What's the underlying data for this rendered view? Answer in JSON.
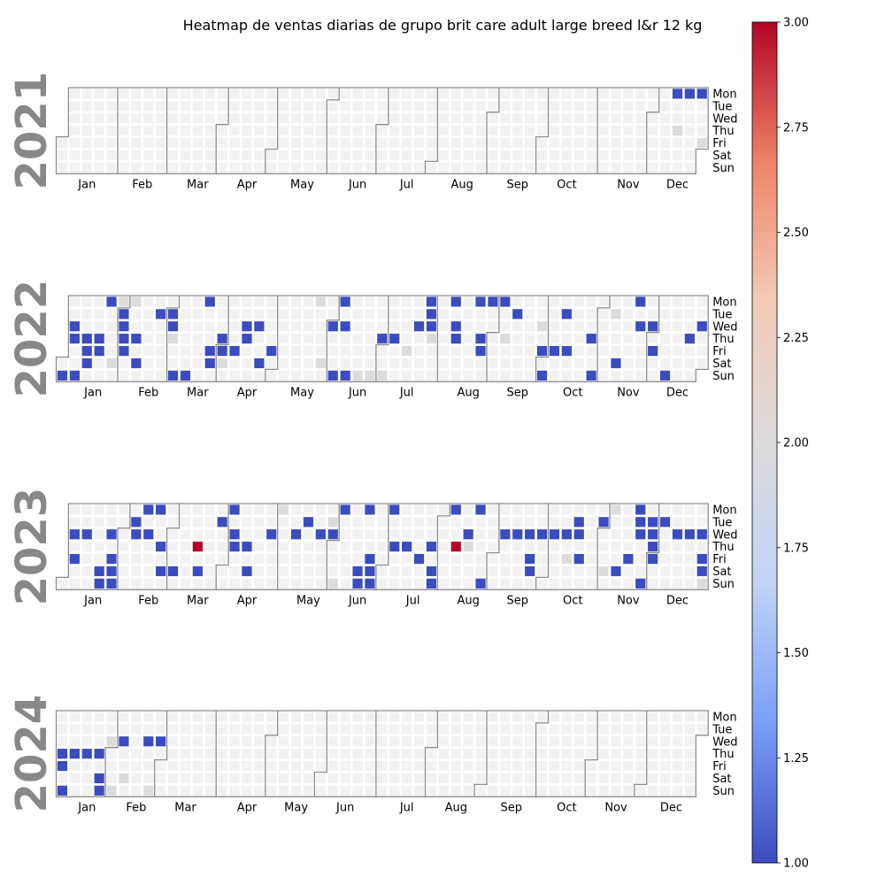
{
  "chart_data": {
    "type": "heatmap",
    "title": "Heatmap de ventas diarias de grupo brit care adult large breed l&r 12 kg",
    "weekday_labels": [
      "Mon",
      "Tue",
      "Wed",
      "Thu",
      "Fri",
      "Sat",
      "Sun"
    ],
    "month_labels": [
      "Jan",
      "Feb",
      "Mar",
      "Apr",
      "May",
      "Jun",
      "Jul",
      "Aug",
      "Sep",
      "Oct",
      "Nov",
      "Dec"
    ],
    "years": [
      2021,
      2022,
      2023,
      2024
    ],
    "colorbar": {
      "min": 1.0,
      "max": 3.0,
      "ticks": [
        "1.00",
        "1.25",
        "1.50",
        "1.75",
        "2.00",
        "2.25",
        "2.50",
        "2.75",
        "3.00"
      ],
      "colormap": "coolwarm",
      "colors": [
        "#3b4cc0",
        "#7b9ff9",
        "#c0d4f5",
        "#dddcdc",
        "#f2cbb7",
        "#ee8468",
        "#b40426"
      ]
    },
    "points": [
      {
        "date": "2021-12-13",
        "value": 1
      },
      {
        "date": "2021-12-20",
        "value": 1
      },
      {
        "date": "2021-12-27",
        "value": 1
      },
      {
        "date": "2021-12-16",
        "value": 2
      },
      {
        "date": "2021-12-31",
        "value": 2
      },
      {
        "date": "2022-01-02",
        "value": 1
      },
      {
        "date": "2022-01-05",
        "value": 1
      },
      {
        "date": "2022-01-06",
        "value": 1
      },
      {
        "date": "2022-01-09",
        "value": 1
      },
      {
        "date": "2022-01-13",
        "value": 1
      },
      {
        "date": "2022-01-14",
        "value": 1
      },
      {
        "date": "2022-01-15",
        "value": 1
      },
      {
        "date": "2022-01-20",
        "value": 1
      },
      {
        "date": "2022-01-21",
        "value": 1
      },
      {
        "date": "2022-01-24",
        "value": 1
      },
      {
        "date": "2022-01-31",
        "value": 2
      },
      {
        "date": "2022-01-29",
        "value": 2
      },
      {
        "date": "2022-02-01",
        "value": 1
      },
      {
        "date": "2022-02-02",
        "value": 1
      },
      {
        "date": "2022-02-03",
        "value": 1
      },
      {
        "date": "2022-02-04",
        "value": 1
      },
      {
        "date": "2022-02-07",
        "value": 2
      },
      {
        "date": "2022-02-10",
        "value": 1
      },
      {
        "date": "2022-02-12",
        "value": 1
      },
      {
        "date": "2022-02-22",
        "value": 1
      },
      {
        "date": "2022-03-01",
        "value": 1
      },
      {
        "date": "2022-03-02",
        "value": 1
      },
      {
        "date": "2022-03-03",
        "value": 2
      },
      {
        "date": "2022-03-06",
        "value": 1
      },
      {
        "date": "2022-03-13",
        "value": 1
      },
      {
        "date": "2022-03-21",
        "value": 1
      },
      {
        "date": "2022-03-25",
        "value": 1
      },
      {
        "date": "2022-03-26",
        "value": 1
      },
      {
        "date": "2022-03-31",
        "value": 1
      },
      {
        "date": "2022-04-01",
        "value": 1
      },
      {
        "date": "2022-04-02",
        "value": 2
      },
      {
        "date": "2022-04-08",
        "value": 1
      },
      {
        "date": "2022-04-13",
        "value": 1
      },
      {
        "date": "2022-04-14",
        "value": 1
      },
      {
        "date": "2022-04-20",
        "value": 1
      },
      {
        "date": "2022-04-23",
        "value": 1
      },
      {
        "date": "2022-04-29",
        "value": 1
      },
      {
        "date": "2022-05-23",
        "value": 2
      },
      {
        "date": "2022-05-28",
        "value": 2
      },
      {
        "date": "2022-06-01",
        "value": 1
      },
      {
        "date": "2022-06-05",
        "value": 1
      },
      {
        "date": "2022-06-06",
        "value": 1
      },
      {
        "date": "2022-06-08",
        "value": 1
      },
      {
        "date": "2022-06-12",
        "value": 1
      },
      {
        "date": "2022-06-19",
        "value": 2
      },
      {
        "date": "2022-06-26",
        "value": 2
      },
      {
        "date": "2022-06-30",
        "value": 1
      },
      {
        "date": "2022-07-03",
        "value": 2
      },
      {
        "date": "2022-07-07",
        "value": 1
      },
      {
        "date": "2022-07-15",
        "value": 2
      },
      {
        "date": "2022-07-20",
        "value": 1
      },
      {
        "date": "2022-07-25",
        "value": 1
      },
      {
        "date": "2022-07-26",
        "value": 1
      },
      {
        "date": "2022-07-27",
        "value": 1
      },
      {
        "date": "2022-07-28",
        "value": 2
      },
      {
        "date": "2022-08-08",
        "value": 1
      },
      {
        "date": "2022-08-10",
        "value": 1
      },
      {
        "date": "2022-08-11",
        "value": 1
      },
      {
        "date": "2022-08-22",
        "value": 1
      },
      {
        "date": "2022-08-25",
        "value": 1
      },
      {
        "date": "2022-08-26",
        "value": 1
      },
      {
        "date": "2022-08-29",
        "value": 1
      },
      {
        "date": "2022-09-05",
        "value": 1
      },
      {
        "date": "2022-09-08",
        "value": 2
      },
      {
        "date": "2022-09-13",
        "value": 1
      },
      {
        "date": "2022-09-28",
        "value": 2
      },
      {
        "date": "2022-09-30",
        "value": 1
      },
      {
        "date": "2022-10-02",
        "value": 1
      },
      {
        "date": "2022-10-07",
        "value": 1
      },
      {
        "date": "2022-10-11",
        "value": 1
      },
      {
        "date": "2022-10-14",
        "value": 1
      },
      {
        "date": "2022-10-27",
        "value": 1
      },
      {
        "date": "2022-10-30",
        "value": 1
      },
      {
        "date": "2022-11-08",
        "value": 2
      },
      {
        "date": "2022-11-12",
        "value": 1
      },
      {
        "date": "2022-11-21",
        "value": 1
      },
      {
        "date": "2022-11-23",
        "value": 1
      },
      {
        "date": "2022-11-30",
        "value": 1
      },
      {
        "date": "2022-12-02",
        "value": 1
      },
      {
        "date": "2022-12-11",
        "value": 1
      },
      {
        "date": "2022-12-22",
        "value": 1
      },
      {
        "date": "2022-12-28",
        "value": 1
      },
      {
        "date": "2023-01-04",
        "value": 1
      },
      {
        "date": "2023-01-06",
        "value": 1
      },
      {
        "date": "2023-01-11",
        "value": 1
      },
      {
        "date": "2023-01-21",
        "value": 1
      },
      {
        "date": "2023-01-22",
        "value": 1
      },
      {
        "date": "2023-01-25",
        "value": 1
      },
      {
        "date": "2023-01-27",
        "value": 1
      },
      {
        "date": "2023-01-28",
        "value": 1
      },
      {
        "date": "2023-01-29",
        "value": 1
      },
      {
        "date": "2023-02-07",
        "value": 1
      },
      {
        "date": "2023-02-08",
        "value": 1
      },
      {
        "date": "2023-02-13",
        "value": 1
      },
      {
        "date": "2023-02-15",
        "value": 1
      },
      {
        "date": "2023-02-20",
        "value": 1
      },
      {
        "date": "2023-02-23",
        "value": 1
      },
      {
        "date": "2023-02-25",
        "value": 1
      },
      {
        "date": "2023-03-04",
        "value": 1
      },
      {
        "date": "2023-03-16",
        "value": 3
      },
      {
        "date": "2023-03-18",
        "value": 1
      },
      {
        "date": "2023-03-28",
        "value": 1
      },
      {
        "date": "2023-04-03",
        "value": 1
      },
      {
        "date": "2023-04-05",
        "value": 1
      },
      {
        "date": "2023-04-06",
        "value": 1
      },
      {
        "date": "2023-04-13",
        "value": 1
      },
      {
        "date": "2023-04-15",
        "value": 1
      },
      {
        "date": "2023-04-26",
        "value": 1
      },
      {
        "date": "2023-05-01",
        "value": 2
      },
      {
        "date": "2023-05-10",
        "value": 1
      },
      {
        "date": "2023-05-16",
        "value": 1
      },
      {
        "date": "2023-05-24",
        "value": 1
      },
      {
        "date": "2023-05-30",
        "value": 2
      },
      {
        "date": "2023-05-31",
        "value": 1
      },
      {
        "date": "2023-06-04",
        "value": 2
      },
      {
        "date": "2023-06-05",
        "value": 1
      },
      {
        "date": "2023-06-17",
        "value": 1
      },
      {
        "date": "2023-06-18",
        "value": 1
      },
      {
        "date": "2023-06-19",
        "value": 1
      },
      {
        "date": "2023-06-23",
        "value": 1
      },
      {
        "date": "2023-06-24",
        "value": 1
      },
      {
        "date": "2023-06-25",
        "value": 1
      },
      {
        "date": "2023-07-03",
        "value": 1
      },
      {
        "date": "2023-07-06",
        "value": 1
      },
      {
        "date": "2023-07-13",
        "value": 1
      },
      {
        "date": "2023-07-21",
        "value": 1
      },
      {
        "date": "2023-07-27",
        "value": 1
      },
      {
        "date": "2023-07-29",
        "value": 1
      },
      {
        "date": "2023-07-30",
        "value": 1
      },
      {
        "date": "2023-08-07",
        "value": 1
      },
      {
        "date": "2023-08-10",
        "value": 3
      },
      {
        "date": "2023-08-16",
        "value": 1
      },
      {
        "date": "2023-08-17",
        "value": 2
      },
      {
        "date": "2023-08-21",
        "value": 1
      },
      {
        "date": "2023-08-27",
        "value": 1
      },
      {
        "date": "2023-09-06",
        "value": 1
      },
      {
        "date": "2023-09-13",
        "value": 1
      },
      {
        "date": "2023-09-20",
        "value": 1
      },
      {
        "date": "2023-09-22",
        "value": 1
      },
      {
        "date": "2023-09-23",
        "value": 1
      },
      {
        "date": "2023-09-27",
        "value": 1
      },
      {
        "date": "2023-10-04",
        "value": 1
      },
      {
        "date": "2023-10-11",
        "value": 1
      },
      {
        "date": "2023-10-13",
        "value": 2
      },
      {
        "date": "2023-10-17",
        "value": 1
      },
      {
        "date": "2023-10-18",
        "value": 1
      },
      {
        "date": "2023-10-20",
        "value": 1
      },
      {
        "date": "2023-10-31",
        "value": 1
      },
      {
        "date": "2023-11-04",
        "value": 2
      },
      {
        "date": "2023-11-06",
        "value": 2
      },
      {
        "date": "2023-11-11",
        "value": 1
      },
      {
        "date": "2023-11-17",
        "value": 1
      },
      {
        "date": "2023-11-20",
        "value": 1
      },
      {
        "date": "2023-11-21",
        "value": 1
      },
      {
        "date": "2023-11-22",
        "value": 1
      },
      {
        "date": "2023-11-26",
        "value": 1
      },
      {
        "date": "2023-11-28",
        "value": 1
      },
      {
        "date": "2023-11-29",
        "value": 1
      },
      {
        "date": "2023-11-30",
        "value": 1
      },
      {
        "date": "2023-12-01",
        "value": 1
      },
      {
        "date": "2023-12-05",
        "value": 1
      },
      {
        "date": "2023-12-13",
        "value": 1
      },
      {
        "date": "2023-12-20",
        "value": 1
      },
      {
        "date": "2023-12-27",
        "value": 1
      },
      {
        "date": "2023-12-29",
        "value": 1
      },
      {
        "date": "2023-12-30",
        "value": 1
      },
      {
        "date": "2023-12-31",
        "value": 2
      },
      {
        "date": "2024-01-04",
        "value": 1
      },
      {
        "date": "2024-01-05",
        "value": 1
      },
      {
        "date": "2024-01-07",
        "value": 1
      },
      {
        "date": "2024-01-11",
        "value": 1
      },
      {
        "date": "2024-01-18",
        "value": 1
      },
      {
        "date": "2024-01-25",
        "value": 1
      },
      {
        "date": "2024-01-27",
        "value": 1
      },
      {
        "date": "2024-01-28",
        "value": 1
      },
      {
        "date": "2024-01-31",
        "value": 2
      },
      {
        "date": "2024-02-04",
        "value": 2
      },
      {
        "date": "2024-02-07",
        "value": 1
      },
      {
        "date": "2024-02-10",
        "value": 2
      },
      {
        "date": "2024-02-21",
        "value": 1
      },
      {
        "date": "2024-02-25",
        "value": 2
      },
      {
        "date": "2024-02-28",
        "value": 1
      }
    ]
  }
}
